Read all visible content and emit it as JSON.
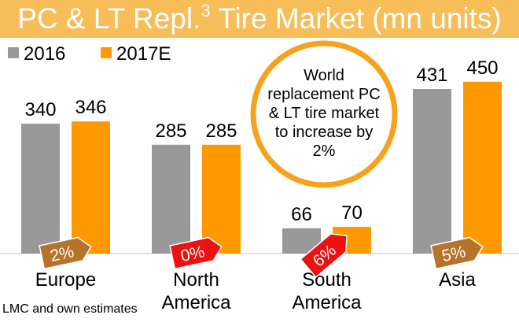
{
  "header": {
    "title": "PC & LT Repl.",
    "title_superscript": "3",
    "title_suffix": " Tire Market (mn units)"
  },
  "chart_data": {
    "type": "bar",
    "title": "PC & LT Repl.3 Tire Market (mn units)",
    "categories": [
      "Europe",
      "North\nAmerica",
      "South\nAmerica",
      "Asia"
    ],
    "series": [
      {
        "name": "2016",
        "values": [
          340,
          285,
          66,
          431
        ],
        "color": "#999999"
      },
      {
        "name": "2017E",
        "values": [
          346,
          285,
          70,
          450
        ],
        "color": "#ff9900"
      }
    ],
    "growth_badges": [
      {
        "label": "2%",
        "color": "#b8732b"
      },
      {
        "label": "0%",
        "color": "#ee1111"
      },
      {
        "label": "6%",
        "color": "#ee1111"
      },
      {
        "label": "5%",
        "color": "#b8732b"
      }
    ],
    "legend_position": "top-left",
    "grid": false,
    "ylim": [
      0,
      500
    ],
    "annotation": {
      "lines": [
        "World",
        "replacement PC",
        "& LT tire market",
        "to increase by",
        "2%"
      ],
      "ring_color": "#f7a21b"
    }
  },
  "footnote": "LMC and own estimates"
}
